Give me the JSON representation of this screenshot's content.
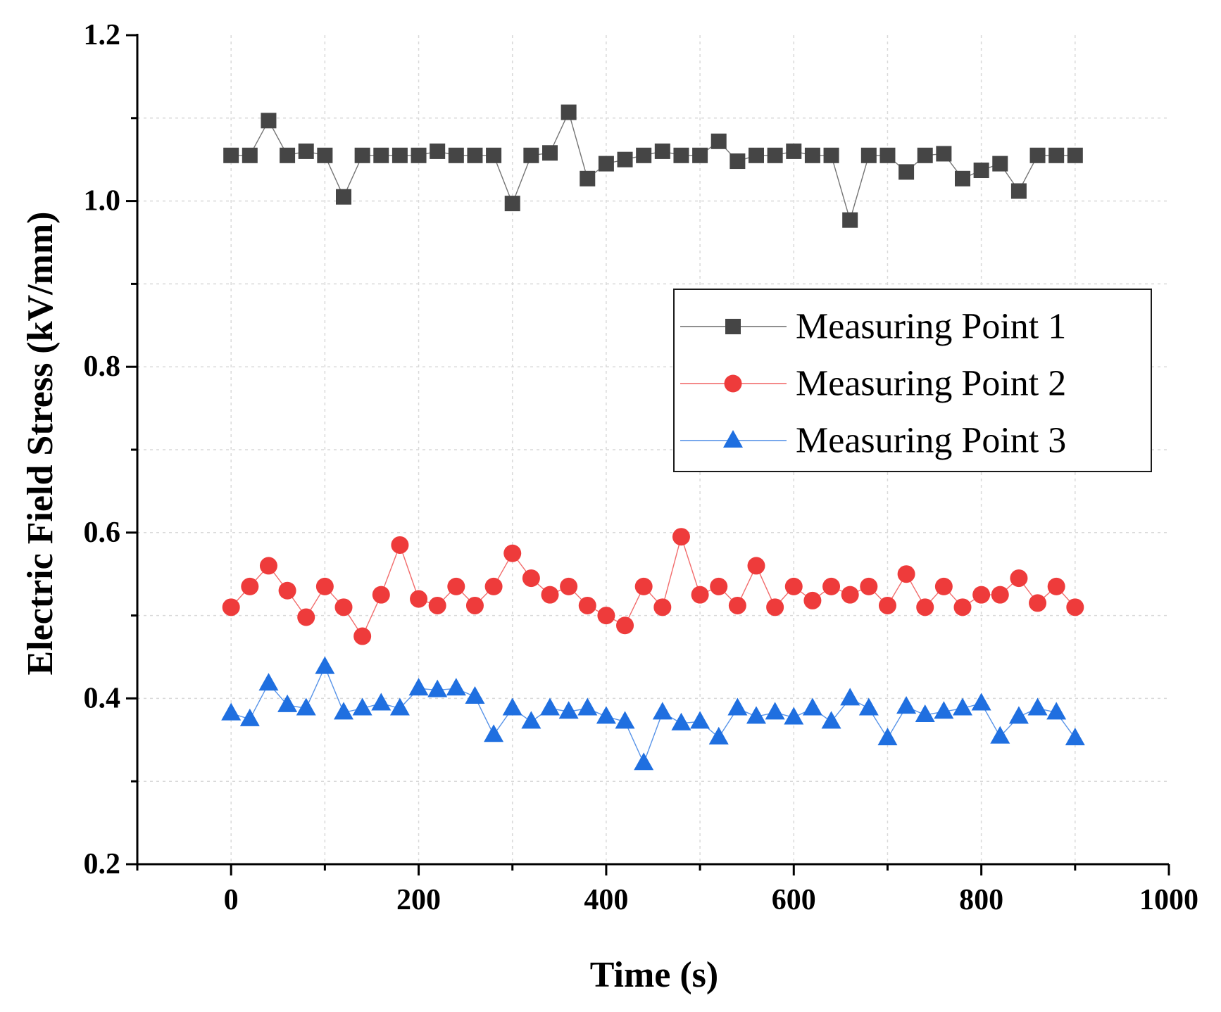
{
  "chart_data": {
    "type": "line",
    "title": "",
    "xlabel": "Time (s)",
    "ylabel": "Electric Field Stress (kV/mm)",
    "xlim": [
      -100,
      1000
    ],
    "ylim": [
      0.2,
      1.2
    ],
    "xticks": [
      0,
      200,
      400,
      600,
      800,
      1000
    ],
    "xtick_labels": [
      "0",
      "200",
      "400",
      "600",
      "800",
      "1000"
    ],
    "yticks": [
      0.2,
      0.4,
      0.6,
      0.8,
      1.0,
      1.2
    ],
    "ytick_labels": [
      "0.2",
      "0.4",
      "0.6",
      "0.8",
      "1.0",
      "1.2"
    ],
    "grid": true,
    "legend_position": "right-middle",
    "x": [
      0,
      20,
      40,
      60,
      80,
      100,
      120,
      140,
      160,
      180,
      200,
      220,
      240,
      260,
      280,
      300,
      320,
      340,
      360,
      380,
      400,
      420,
      440,
      460,
      480,
      500,
      520,
      540,
      560,
      580,
      600,
      620,
      640,
      660,
      680,
      700,
      720,
      740,
      760,
      780,
      800,
      820,
      840,
      860,
      880,
      900
    ],
    "series": [
      {
        "name": "Measuring Point 1",
        "color": "#454545",
        "marker": "square",
        "values": [
          1.055,
          1.055,
          1.097,
          1.055,
          1.06,
          1.055,
          1.005,
          1.055,
          1.055,
          1.055,
          1.055,
          1.06,
          1.055,
          1.055,
          1.055,
          0.997,
          1.055,
          1.058,
          1.107,
          1.027,
          1.045,
          1.05,
          1.055,
          1.06,
          1.055,
          1.055,
          1.072,
          1.048,
          1.055,
          1.055,
          1.06,
          1.055,
          1.055,
          0.977,
          1.055,
          1.055,
          1.035,
          1.055,
          1.057,
          1.027,
          1.037,
          1.045,
          1.012,
          1.055,
          1.055,
          1.055
        ]
      },
      {
        "name": "Measuring Point 2",
        "color": "#ee3b3b",
        "marker": "circle",
        "values": [
          0.51,
          0.535,
          0.56,
          0.53,
          0.498,
          0.535,
          0.51,
          0.475,
          0.525,
          0.585,
          0.52,
          0.512,
          0.535,
          0.512,
          0.535,
          0.575,
          0.545,
          0.525,
          0.535,
          0.512,
          0.5,
          0.488,
          0.535,
          0.51,
          0.595,
          0.525,
          0.535,
          0.512,
          0.56,
          0.51,
          0.535,
          0.518,
          0.535,
          0.525,
          0.535,
          0.512,
          0.55,
          0.51,
          0.535,
          0.51,
          0.525,
          0.525,
          0.545,
          0.515,
          0.535,
          0.51
        ]
      },
      {
        "name": "Measuring Point 3",
        "color": "#1f6fe0",
        "marker": "triangle",
        "values": [
          0.382,
          0.375,
          0.418,
          0.392,
          0.388,
          0.438,
          0.383,
          0.388,
          0.394,
          0.388,
          0.412,
          0.41,
          0.412,
          0.402,
          0.356,
          0.388,
          0.372,
          0.388,
          0.384,
          0.388,
          0.378,
          0.372,
          0.322,
          0.383,
          0.37,
          0.372,
          0.353,
          0.388,
          0.378,
          0.383,
          0.377,
          0.388,
          0.372,
          0.4,
          0.388,
          0.352,
          0.39,
          0.38,
          0.384,
          0.388,
          0.394,
          0.354,
          0.378,
          0.388,
          0.383,
          0.352
        ]
      }
    ]
  }
}
